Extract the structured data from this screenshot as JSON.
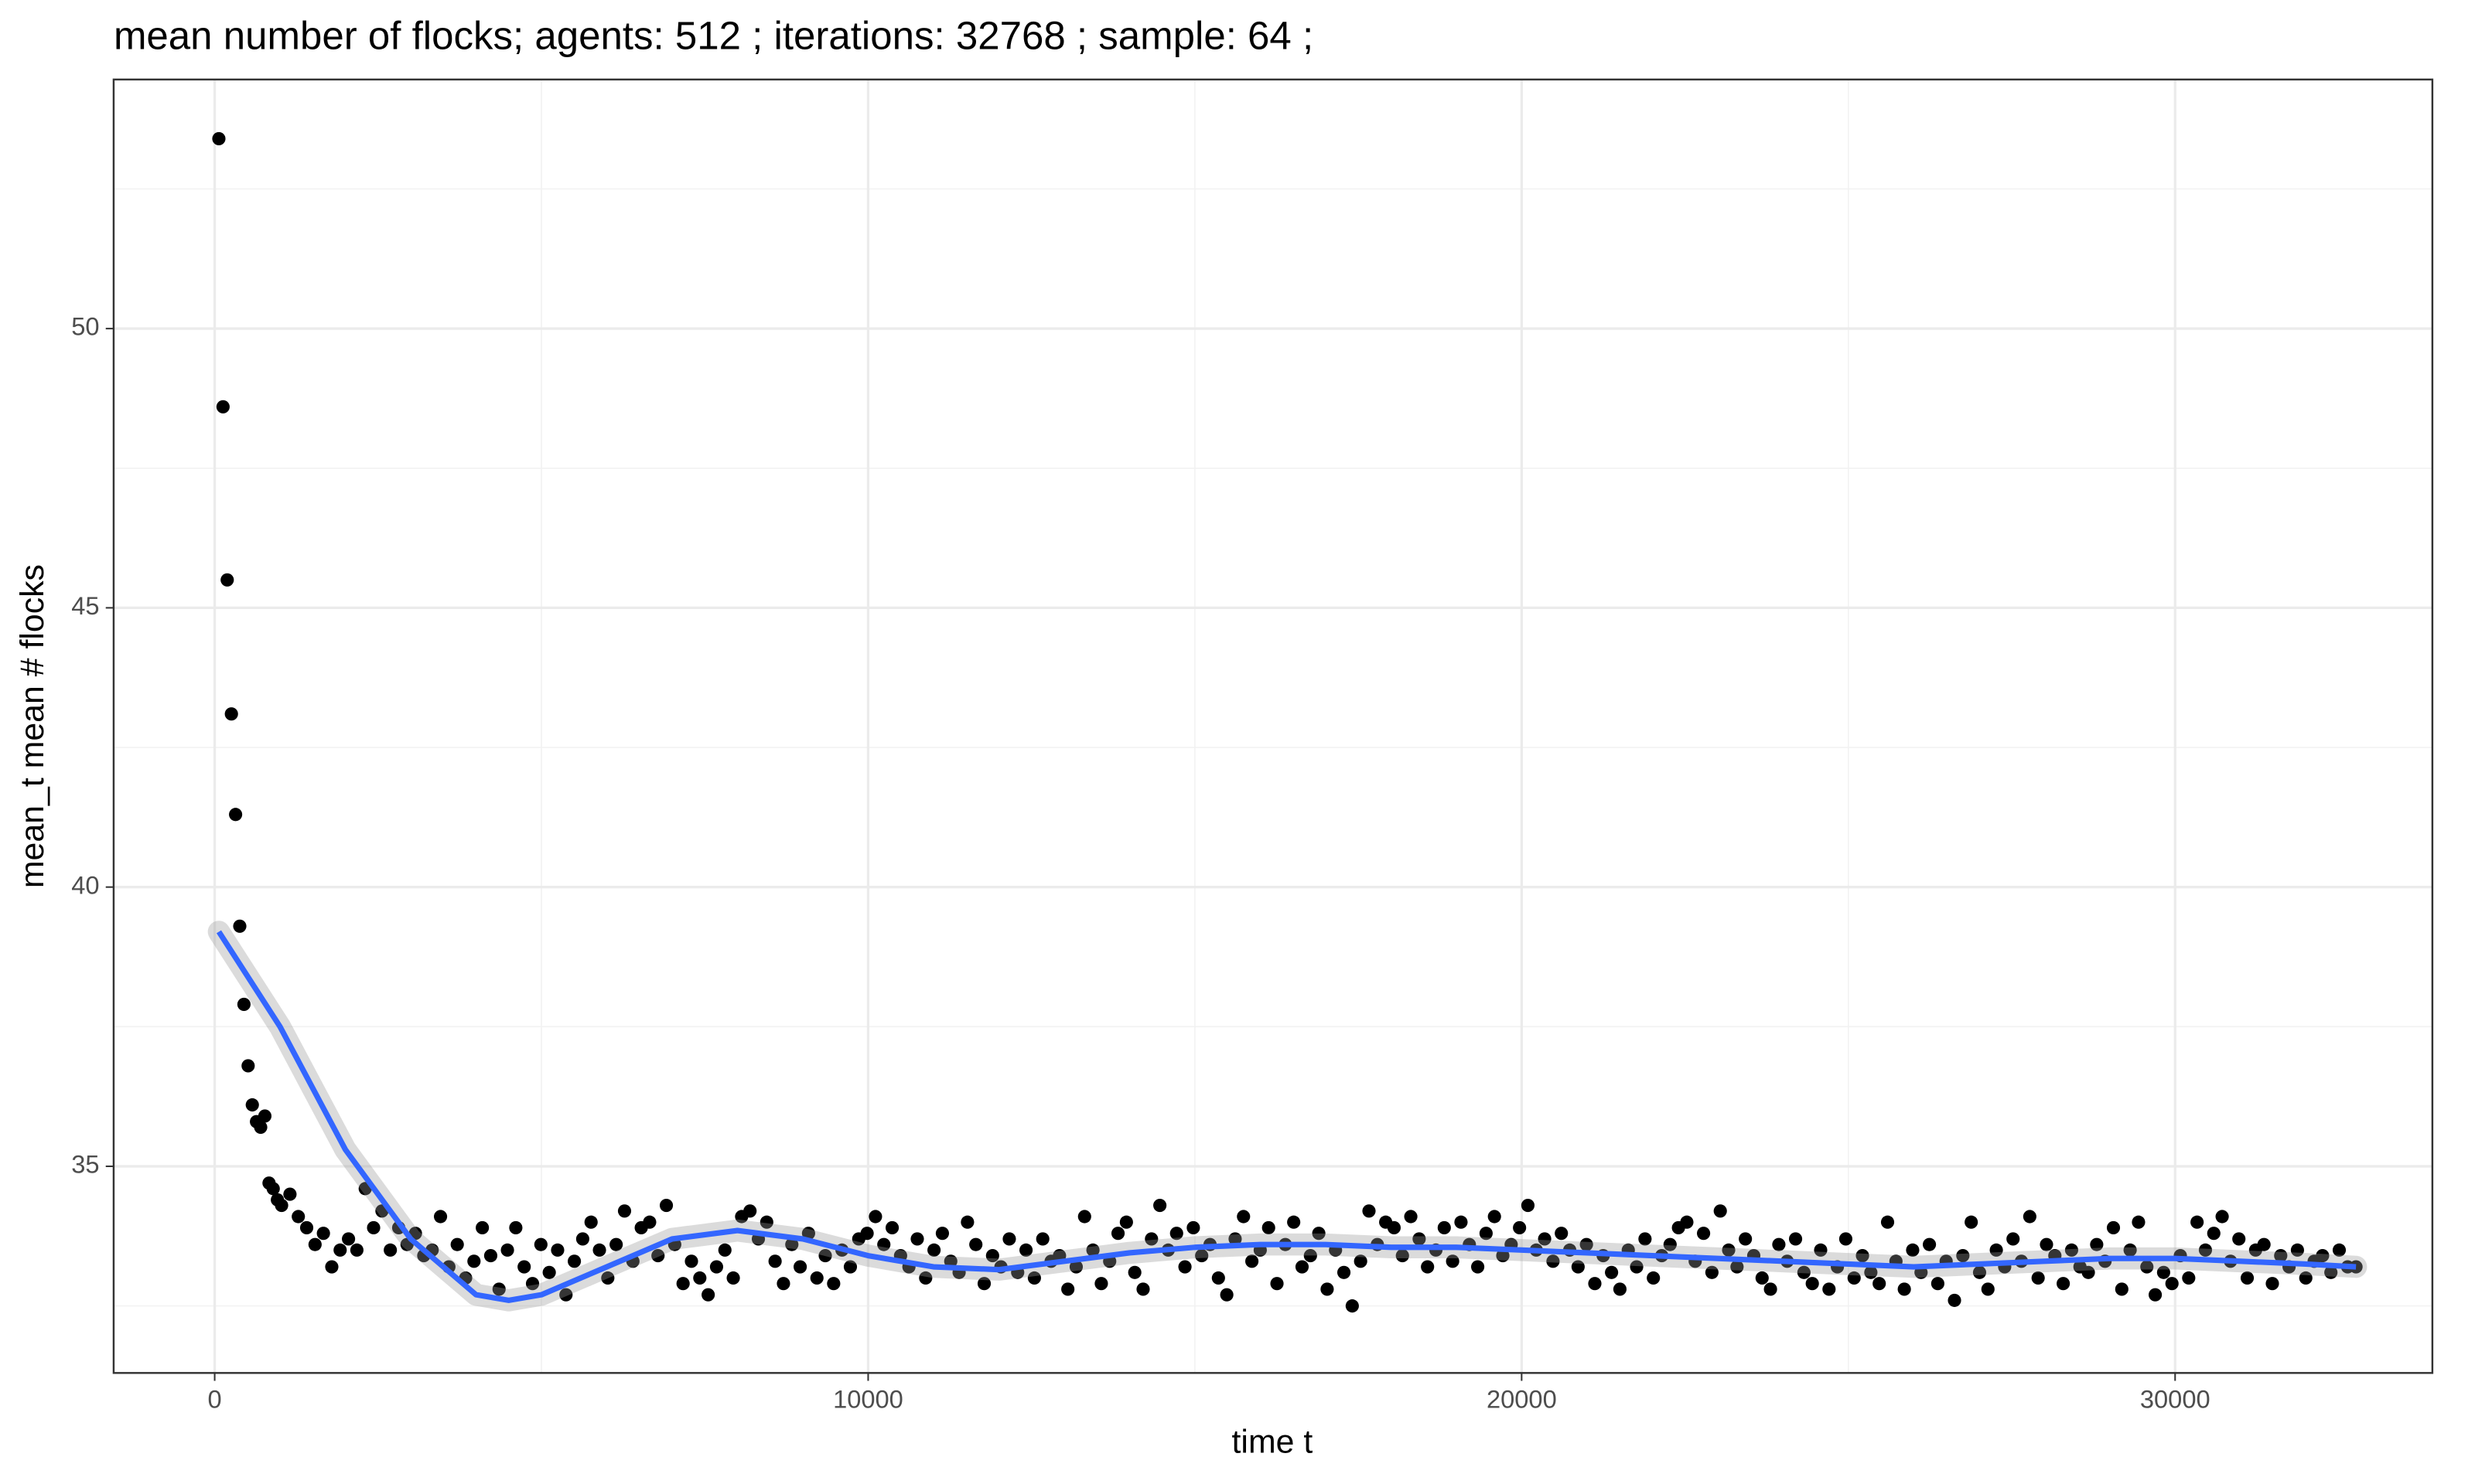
{
  "chart_data": {
    "type": "scatter",
    "title": "mean number of flocks; agents: 512 ; iterations: 32768 ; sample: 64 ;",
    "xlabel": "time t",
    "ylabel": "mean_t mean # flocks",
    "xlim": [
      -1546,
      33937
    ],
    "ylim": [
      31.3,
      54.46
    ],
    "xticks": [
      0,
      10000,
      20000,
      30000
    ],
    "yticks": [
      35,
      40,
      45,
      50
    ],
    "xminor": [
      5000,
      15000,
      25000
    ],
    "yminor": [
      32.5,
      37.5,
      42.5,
      47.5,
      52.5
    ],
    "grid": true,
    "series": [
      {
        "color": "#000000",
        "x": [
          64,
          128,
          192,
          256,
          320,
          384,
          448,
          512,
          576,
          640,
          704,
          768,
          832,
          896,
          960,
          1024,
          1152,
          1280,
          1408,
          1536,
          1664,
          1792,
          1920,
          2048,
          2176,
          2304,
          2432,
          2560,
          2688,
          2816,
          2944,
          3072,
          3200,
          3328,
          3456,
          3584,
          3712,
          3840,
          3968,
          4096,
          4224,
          4352,
          4480,
          4608,
          4736,
          4864,
          4992,
          5120,
          5248,
          5376,
          5504,
          5632,
          5760,
          5888,
          6016,
          6144,
          6272,
          6400,
          6528,
          6656,
          6784,
          6912,
          7040,
          7168,
          7296,
          7424,
          7552,
          7680,
          7808,
          7936,
          8064,
          8192,
          8320,
          8448,
          8576,
          8704,
          8832,
          8960,
          9088,
          9216,
          9344,
          9472,
          9600,
          9728,
          9856,
          9984,
          10112,
          10240,
          10368,
          10496,
          10624,
          10752,
          10880,
          11008,
          11136,
          11264,
          11392,
          11520,
          11648,
          11776,
          11904,
          12032,
          12160,
          12288,
          12416,
          12544,
          12672,
          12800,
          12928,
          13056,
          13184,
          13312,
          13440,
          13568,
          13696,
          13824,
          13952,
          14080,
          14208,
          14336,
          14464,
          14592,
          14720,
          14848,
          14976,
          15104,
          15232,
          15360,
          15488,
          15616,
          15744,
          15872,
          16000,
          16128,
          16256,
          16384,
          16512,
          16640,
          16768,
          16896,
          17024,
          17152,
          17280,
          17408,
          17536,
          17664,
          17792,
          17920,
          18048,
          18176,
          18304,
          18432,
          18560,
          18688,
          18816,
          18944,
          19072,
          19200,
          19328,
          19456,
          19584,
          19712,
          19840,
          19968,
          20096,
          20224,
          20352,
          20480,
          20608,
          20736,
          20864,
          20992,
          21120,
          21248,
          21376,
          21504,
          21632,
          21760,
          21888,
          22016,
          22144,
          22272,
          22400,
          22528,
          22656,
          22784,
          22912,
          23040,
          23168,
          23296,
          23424,
          23552,
          23680,
          23808,
          23936,
          24064,
          24192,
          24320,
          24448,
          24576,
          24704,
          24832,
          24960,
          25088,
          25216,
          25344,
          25472,
          25600,
          25728,
          25856,
          25984,
          26112,
          26240,
          26368,
          26496,
          26624,
          26752,
          26880,
          27008,
          27136,
          27264,
          27392,
          27520,
          27648,
          27776,
          27904,
          28032,
          28160,
          28288,
          28416,
          28544,
          28672,
          28800,
          28928,
          29056,
          29184,
          29312,
          29440,
          29568,
          29696,
          29824,
          29952,
          30080,
          30208,
          30336,
          30464,
          30592,
          30720,
          30848,
          30976,
          31104,
          31232,
          31360,
          31488,
          31616,
          31744,
          31872,
          32000,
          32128,
          32256,
          32384,
          32512,
          32640,
          32768
        ],
        "values": [
          53.4,
          48.6,
          45.5,
          43.1,
          41.3,
          39.3,
          37.9,
          36.8,
          36.1,
          35.8,
          35.7,
          35.9,
          34.7,
          34.6,
          34.4,
          34.3,
          34.5,
          34.1,
          33.9,
          33.6,
          33.8,
          33.2,
          33.5,
          33.7,
          33.5,
          34.6,
          33.9,
          34.2,
          33.5,
          33.9,
          33.6,
          33.8,
          33.4,
          33.5,
          34.1,
          33.2,
          33.6,
          33.0,
          33.3,
          33.9,
          33.4,
          32.8,
          33.5,
          33.9,
          33.2,
          32.9,
          33.6,
          33.1,
          33.5,
          32.7,
          33.3,
          33.7,
          34.0,
          33.5,
          33.0,
          33.6,
          34.2,
          33.3,
          33.9,
          34.0,
          33.4,
          34.3,
          33.6,
          32.9,
          33.3,
          33.0,
          32.7,
          33.2,
          33.5,
          33.0,
          34.1,
          34.2,
          33.7,
          34.0,
          33.3,
          32.9,
          33.6,
          33.2,
          33.8,
          33.0,
          33.4,
          32.9,
          33.5,
          33.2,
          33.7,
          33.8,
          34.1,
          33.6,
          33.9,
          33.4,
          33.2,
          33.7,
          33.0,
          33.5,
          33.8,
          33.3,
          33.1,
          34.0,
          33.6,
          32.9,
          33.4,
          33.2,
          33.7,
          33.1,
          33.5,
          33.0,
          33.7,
          33.3,
          33.4,
          32.8,
          33.2,
          34.1,
          33.5,
          32.9,
          33.3,
          33.8,
          34.0,
          33.1,
          32.8,
          33.7,
          34.3,
          33.5,
          33.8,
          33.2,
          33.9,
          33.4,
          33.6,
          33.0,
          32.7,
          33.7,
          34.1,
          33.3,
          33.5,
          33.9,
          32.9,
          33.6,
          34.0,
          33.2,
          33.4,
          33.8,
          32.8,
          33.5,
          33.1,
          32.5,
          33.3,
          34.2,
          33.6,
          34.0,
          33.9,
          33.4,
          34.1,
          33.7,
          33.2,
          33.5,
          33.9,
          33.3,
          34.0,
          33.6,
          33.2,
          33.8,
          34.1,
          33.4,
          33.6,
          33.9,
          34.3,
          33.5,
          33.7,
          33.3,
          33.8,
          33.5,
          33.2,
          33.6,
          32.9,
          33.4,
          33.1,
          32.8,
          33.5,
          33.2,
          33.7,
          33.0,
          33.4,
          33.6,
          33.9,
          34.0,
          33.3,
          33.8,
          33.1,
          34.2,
          33.5,
          33.2,
          33.7,
          33.4,
          33.0,
          32.8,
          33.6,
          33.3,
          33.7,
          33.1,
          32.9,
          33.5,
          32.8,
          33.2,
          33.7,
          33.0,
          33.4,
          33.1,
          32.9,
          34.0,
          33.3,
          32.8,
          33.5,
          33.1,
          33.6,
          32.9,
          33.3,
          32.6,
          33.4,
          34.0,
          33.1,
          32.8,
          33.5,
          33.2,
          33.7,
          33.3,
          34.1,
          33.0,
          33.6,
          33.4,
          32.9,
          33.5,
          33.2,
          33.1,
          33.6,
          33.3,
          33.9,
          32.8,
          33.5,
          34.0,
          33.2,
          32.7,
          33.1,
          32.9,
          33.4,
          33.0,
          34.0,
          33.5,
          33.8,
          34.1,
          33.3,
          33.7,
          33.0,
          33.5,
          33.6,
          32.9,
          33.4,
          33.2,
          33.5,
          33.0,
          33.3,
          33.4,
          33.1,
          33.5,
          33.2,
          33.2
        ]
      },
      {
        "color": "#3366ff",
        "x": [
          64,
          1000,
          2000,
          3000,
          4000,
          4500,
          5000,
          6000,
          7000,
          8000,
          9000,
          10000,
          11000,
          12000,
          13000,
          14000,
          15000,
          16000,
          17000,
          18000,
          19000,
          20000,
          21000,
          22000,
          23000,
          24000,
          25000,
          26000,
          27000,
          28000,
          29000,
          30000,
          31000,
          32000,
          32768
        ],
        "values": [
          39.2,
          37.5,
          35.3,
          33.7,
          32.7,
          32.6,
          32.7,
          33.2,
          33.7,
          33.85,
          33.7,
          33.4,
          33.2,
          33.15,
          33.3,
          33.45,
          33.55,
          33.6,
          33.6,
          33.55,
          33.55,
          33.5,
          33.45,
          33.4,
          33.35,
          33.3,
          33.25,
          33.2,
          33.25,
          33.3,
          33.35,
          33.35,
          33.3,
          33.25,
          33.2
        ]
      }
    ]
  }
}
